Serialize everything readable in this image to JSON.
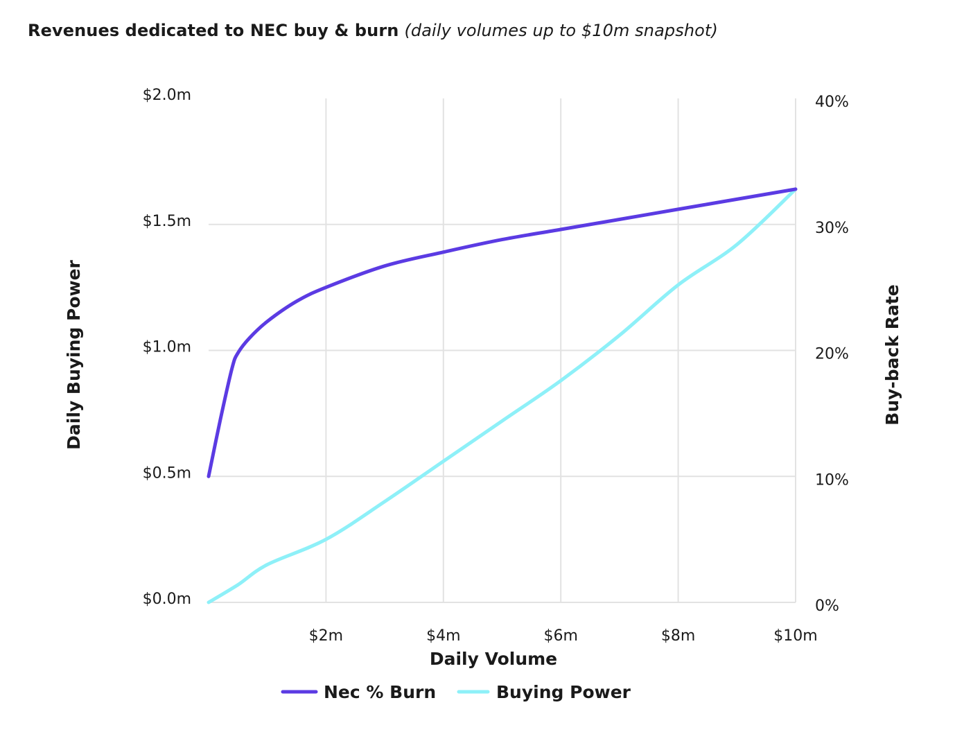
{
  "title": {
    "main": "Revenues dedicated to NEC buy & burn",
    "subtitle": "(daily volumes up to $10m snapshot)"
  },
  "colors": {
    "burn": "#5B3BE3",
    "buying_power": "#8EF0F8",
    "grid": "#E2E2E2",
    "text": "#1A1A1A"
  },
  "chart_data": {
    "type": "line",
    "xlabel": "Daily Volume",
    "ylabel_left": "Daily Buying Power",
    "ylabel_right": "Buy-back Rate",
    "xlim": [
      0,
      10
    ],
    "ylim_left": [
      0,
      2.0
    ],
    "ylim_right": [
      0,
      40
    ],
    "x_ticks": [
      "$2m",
      "$4m",
      "$6m",
      "$8m",
      "$10m"
    ],
    "x_tick_values": [
      2,
      4,
      6,
      8,
      10
    ],
    "y_left_ticks": [
      "$0.0m",
      "$0.5m",
      "$1.0m",
      "$1.5m",
      "$2.0m"
    ],
    "y_left_tick_values": [
      0,
      0.5,
      1.0,
      1.5,
      2.0
    ],
    "y_right_ticks": [
      "0%",
      "10%",
      "20%",
      "30%",
      "40%"
    ],
    "y_right_tick_values": [
      0,
      10,
      20,
      30,
      40
    ],
    "grid": true,
    "legend_position": "bottom-center",
    "series": [
      {
        "name": "Nec % Burn",
        "axis": "right",
        "x": [
          0,
          0.2,
          0.4,
          0.5,
          0.7,
          1.0,
          1.5,
          2.0,
          3.0,
          4.0,
          5.0,
          6.0,
          7.0,
          8.0,
          9.0,
          10.0
        ],
        "values": [
          10,
          14.5,
          18.6,
          19.8,
          21.0,
          22.3,
          23.9,
          25.0,
          26.7,
          27.8,
          28.8,
          29.6,
          30.4,
          31.2,
          32.0,
          32.8
        ]
      },
      {
        "name": "Buying Power",
        "axis": "left",
        "x": [
          0,
          0.5,
          1.0,
          2.0,
          3.0,
          4.0,
          5.0,
          6.0,
          7.0,
          8.0,
          9.0,
          10.0
        ],
        "values": [
          0,
          0.07,
          0.15,
          0.25,
          0.4,
          0.56,
          0.72,
          0.88,
          1.06,
          1.26,
          1.42,
          1.64
        ]
      }
    ]
  }
}
